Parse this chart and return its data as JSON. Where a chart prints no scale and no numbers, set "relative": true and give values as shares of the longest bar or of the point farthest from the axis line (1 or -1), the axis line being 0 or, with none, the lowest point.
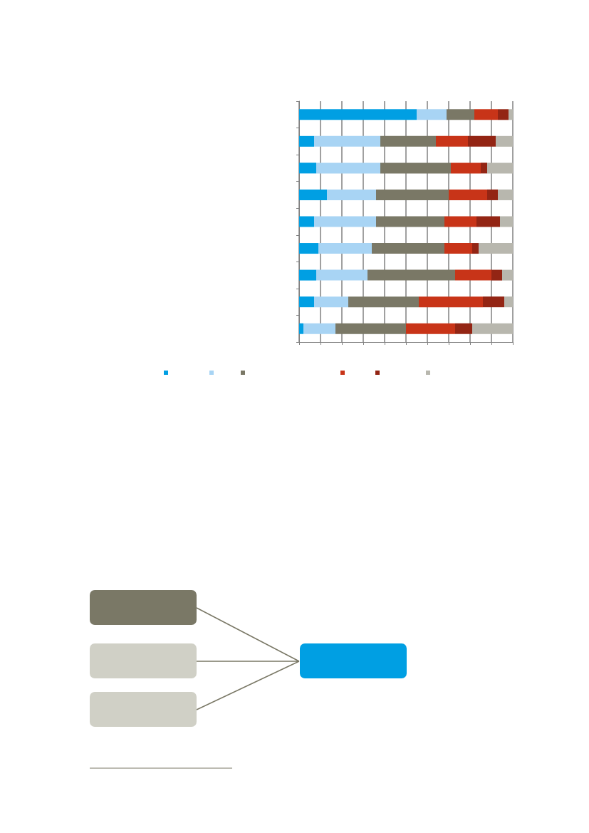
{
  "chart_data": {
    "type": "bar",
    "orientation": "horizontal",
    "stacked": true,
    "relative": true,
    "grid": "x",
    "categories": [
      null,
      null,
      null,
      null,
      null,
      null,
      null,
      null,
      null
    ],
    "series": [
      {
        "color": "#009fe3",
        "values": [
          0.55,
          0.07,
          0.08,
          0.13,
          0.07,
          0.09,
          0.08,
          0.07,
          0.02
        ]
      },
      {
        "color": "#a8d4f4",
        "values": [
          0.14,
          0.31,
          0.3,
          0.23,
          0.29,
          0.25,
          0.24,
          0.16,
          0.15
        ]
      },
      {
        "color": "#7a7866",
        "values": [
          0.13,
          0.26,
          0.33,
          0.34,
          0.32,
          0.34,
          0.41,
          0.33,
          0.33
        ]
      },
      {
        "color": "#c83418",
        "values": [
          0.11,
          0.15,
          0.14,
          0.18,
          0.15,
          0.13,
          0.17,
          0.3,
          0.23
        ]
      },
      {
        "color": "#932514",
        "values": [
          0.05,
          0.13,
          0.03,
          0.05,
          0.11,
          0.03,
          0.05,
          0.1,
          0.08
        ]
      },
      {
        "color": "#b8b7ae",
        "values": [
          0.02,
          0.08,
          0.12,
          0.07,
          0.06,
          0.16,
          0.05,
          0.04,
          0.19
        ]
      }
    ]
  }
}
